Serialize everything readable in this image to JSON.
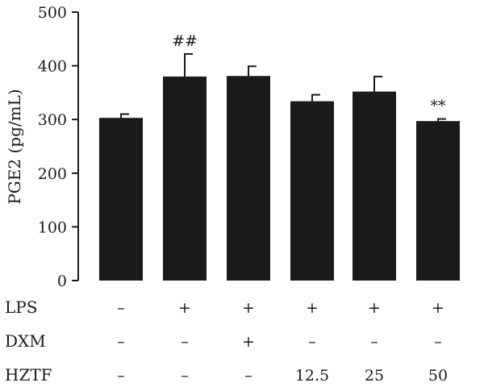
{
  "chart_data": {
    "type": "bar",
    "ylabel": "PGE2 (pg/mL)",
    "ylim": [
      0,
      500
    ],
    "yticks": [
      0,
      100,
      200,
      300,
      400,
      500
    ],
    "values": [
      303,
      380,
      381,
      334,
      352,
      297
    ],
    "errors": [
      7,
      42,
      18,
      12,
      28,
      4
    ],
    "annotations": [
      "",
      "##",
      "",
      "",
      "",
      "**"
    ],
    "bar_color": "#1a1a1a",
    "conditions": [
      {
        "label": "LPS",
        "values": [
          "–",
          "+",
          "+",
          "+",
          "+",
          "+"
        ]
      },
      {
        "label": "DXM",
        "values": [
          "–",
          "–",
          "+",
          "–",
          "–",
          "–"
        ]
      },
      {
        "label": "HZTF",
        "values": [
          "–",
          "–",
          "–",
          "12.5",
          "25",
          "50"
        ]
      }
    ]
  }
}
